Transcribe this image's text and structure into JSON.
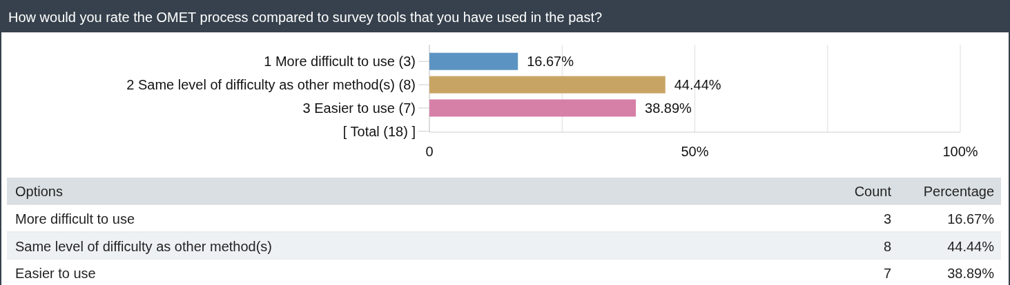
{
  "chart_data": {
    "type": "bar",
    "orientation": "horizontal",
    "title": "How would you rate the OMET process compared to survey tools that you have used in the past?",
    "categories": [
      "1 More difficult to use (3)",
      "2 Same level of difficulty as other method(s) (8)",
      "3 Easier to use (7)",
      "[ Total (18) ]"
    ],
    "values": [
      16.67,
      44.44,
      38.89,
      null
    ],
    "colors": [
      "#5b94c2",
      "#c8a464",
      "#d680a8",
      "#cccccc"
    ],
    "value_labels": [
      "16.67%",
      "44.44%",
      "38.89%",
      null
    ],
    "xlim": [
      0,
      100
    ],
    "xticks": [
      {
        "value": 0,
        "label": "0"
      },
      {
        "value": 25,
        "label": null
      },
      {
        "value": 50,
        "label": "50%"
      },
      {
        "value": 75,
        "label": null
      },
      {
        "value": 100,
        "label": "100%"
      }
    ],
    "grid": "x",
    "annotations": [
      "Options",
      "Count",
      "Percentage",
      "More difficult to use",
      "3",
      "16.67%",
      "Same level of difficulty as other method(s)",
      "8",
      "44.44%",
      "Easier to use",
      "7",
      "38.89%"
    ]
  }
}
